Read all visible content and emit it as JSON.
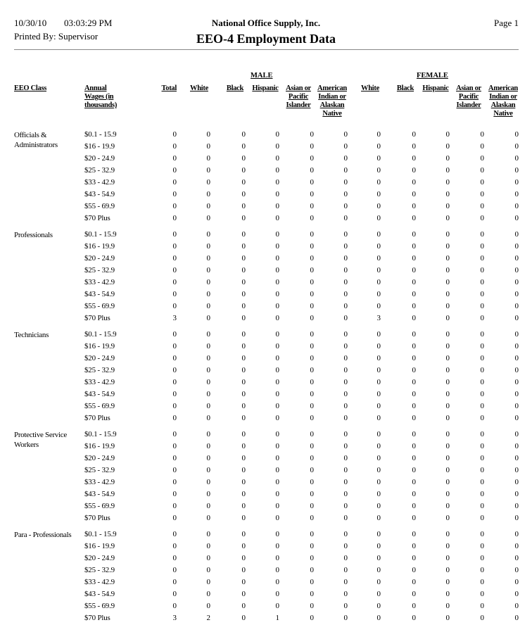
{
  "header": {
    "date": "10/30/10",
    "time": "03:03:29 PM",
    "company": "National Office Supply, Inc.",
    "page": "Page 1",
    "printed_by": "Printed By: Supervisor",
    "title": "EEO-4 Employment Data"
  },
  "columns": {
    "eeo_class": "EEO Class",
    "wages": "Annual Wages (in thousands)",
    "male": "MALE",
    "female": "FEMALE",
    "total": "Total",
    "male_cols": [
      "White",
      "Black",
      "Hispanic",
      "Asian or Pacific Islander",
      "American Indian or Alaskan Native"
    ],
    "female_cols": [
      "White",
      "Black",
      "Hispanic",
      "Asian or Pacific Islander",
      "American Indian or Alaskan Native"
    ]
  },
  "wage_bands": [
    "$0.1 - 15.9",
    "$16 - 19.9",
    "$20 - 24.9",
    "$25 - 32.9",
    "$33 - 42.9",
    "$43 - 54.9",
    "$55 - 69.9",
    "$70 Plus"
  ],
  "groups": [
    {
      "name": "Officials & Administrators",
      "rows": [
        [
          0,
          0,
          0,
          0,
          0,
          0,
          0,
          0,
          0,
          0,
          0
        ],
        [
          0,
          0,
          0,
          0,
          0,
          0,
          0,
          0,
          0,
          0,
          0
        ],
        [
          0,
          0,
          0,
          0,
          0,
          0,
          0,
          0,
          0,
          0,
          0
        ],
        [
          0,
          0,
          0,
          0,
          0,
          0,
          0,
          0,
          0,
          0,
          0
        ],
        [
          0,
          0,
          0,
          0,
          0,
          0,
          0,
          0,
          0,
          0,
          0
        ],
        [
          0,
          0,
          0,
          0,
          0,
          0,
          0,
          0,
          0,
          0,
          0
        ],
        [
          0,
          0,
          0,
          0,
          0,
          0,
          0,
          0,
          0,
          0,
          0
        ],
        [
          0,
          0,
          0,
          0,
          0,
          0,
          0,
          0,
          0,
          0,
          0
        ]
      ]
    },
    {
      "name": "Professionals",
      "rows": [
        [
          0,
          0,
          0,
          0,
          0,
          0,
          0,
          0,
          0,
          0,
          0
        ],
        [
          0,
          0,
          0,
          0,
          0,
          0,
          0,
          0,
          0,
          0,
          0
        ],
        [
          0,
          0,
          0,
          0,
          0,
          0,
          0,
          0,
          0,
          0,
          0
        ],
        [
          0,
          0,
          0,
          0,
          0,
          0,
          0,
          0,
          0,
          0,
          0
        ],
        [
          0,
          0,
          0,
          0,
          0,
          0,
          0,
          0,
          0,
          0,
          0
        ],
        [
          0,
          0,
          0,
          0,
          0,
          0,
          0,
          0,
          0,
          0,
          0
        ],
        [
          0,
          0,
          0,
          0,
          0,
          0,
          0,
          0,
          0,
          0,
          0
        ],
        [
          3,
          0,
          0,
          0,
          0,
          0,
          3,
          0,
          0,
          0,
          0
        ]
      ]
    },
    {
      "name": "Technicians",
      "rows": [
        [
          0,
          0,
          0,
          0,
          0,
          0,
          0,
          0,
          0,
          0,
          0
        ],
        [
          0,
          0,
          0,
          0,
          0,
          0,
          0,
          0,
          0,
          0,
          0
        ],
        [
          0,
          0,
          0,
          0,
          0,
          0,
          0,
          0,
          0,
          0,
          0
        ],
        [
          0,
          0,
          0,
          0,
          0,
          0,
          0,
          0,
          0,
          0,
          0
        ],
        [
          0,
          0,
          0,
          0,
          0,
          0,
          0,
          0,
          0,
          0,
          0
        ],
        [
          0,
          0,
          0,
          0,
          0,
          0,
          0,
          0,
          0,
          0,
          0
        ],
        [
          0,
          0,
          0,
          0,
          0,
          0,
          0,
          0,
          0,
          0,
          0
        ],
        [
          0,
          0,
          0,
          0,
          0,
          0,
          0,
          0,
          0,
          0,
          0
        ]
      ]
    },
    {
      "name": "Protective Service Workers",
      "rows": [
        [
          0,
          0,
          0,
          0,
          0,
          0,
          0,
          0,
          0,
          0,
          0
        ],
        [
          0,
          0,
          0,
          0,
          0,
          0,
          0,
          0,
          0,
          0,
          0
        ],
        [
          0,
          0,
          0,
          0,
          0,
          0,
          0,
          0,
          0,
          0,
          0
        ],
        [
          0,
          0,
          0,
          0,
          0,
          0,
          0,
          0,
          0,
          0,
          0
        ],
        [
          0,
          0,
          0,
          0,
          0,
          0,
          0,
          0,
          0,
          0,
          0
        ],
        [
          0,
          0,
          0,
          0,
          0,
          0,
          0,
          0,
          0,
          0,
          0
        ],
        [
          0,
          0,
          0,
          0,
          0,
          0,
          0,
          0,
          0,
          0,
          0
        ],
        [
          0,
          0,
          0,
          0,
          0,
          0,
          0,
          0,
          0,
          0,
          0
        ]
      ]
    },
    {
      "name": "Para - Professionals",
      "rows": [
        [
          0,
          0,
          0,
          0,
          0,
          0,
          0,
          0,
          0,
          0,
          0
        ],
        [
          0,
          0,
          0,
          0,
          0,
          0,
          0,
          0,
          0,
          0,
          0
        ],
        [
          0,
          0,
          0,
          0,
          0,
          0,
          0,
          0,
          0,
          0,
          0
        ],
        [
          0,
          0,
          0,
          0,
          0,
          0,
          0,
          0,
          0,
          0,
          0
        ],
        [
          0,
          0,
          0,
          0,
          0,
          0,
          0,
          0,
          0,
          0,
          0
        ],
        [
          0,
          0,
          0,
          0,
          0,
          0,
          0,
          0,
          0,
          0,
          0
        ],
        [
          0,
          0,
          0,
          0,
          0,
          0,
          0,
          0,
          0,
          0,
          0
        ],
        [
          3,
          2,
          0,
          1,
          0,
          0,
          0,
          0,
          0,
          0,
          0
        ]
      ]
    }
  ]
}
